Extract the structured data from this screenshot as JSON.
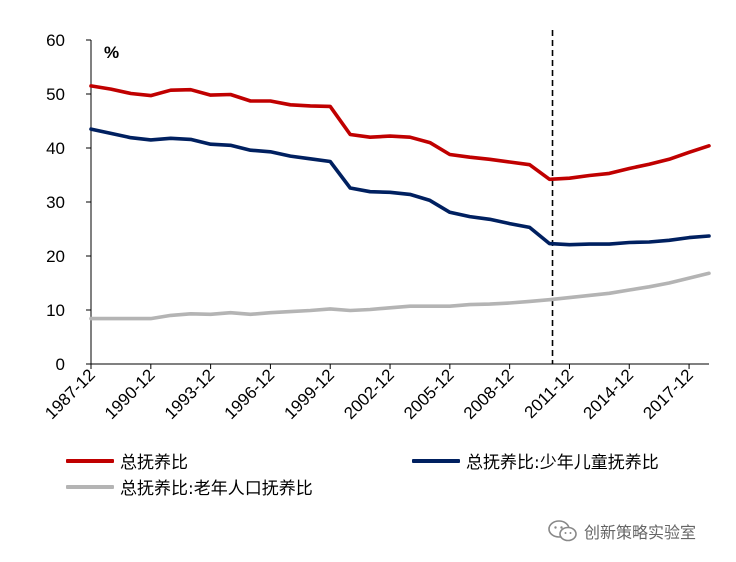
{
  "chart_data": {
    "type": "line",
    "unit_label": "%",
    "ylim": [
      0,
      60
    ],
    "y_ticks": [
      0,
      10,
      20,
      30,
      40,
      50,
      60
    ],
    "x_start_year": 1987,
    "x_end_year": 2018,
    "x_tick_labels": [
      "1987-12",
      "1990-12",
      "1993-12",
      "1996-12",
      "1999-12",
      "2002-12",
      "2005-12",
      "2008-12",
      "2011-12",
      "2014-12",
      "2017-12"
    ],
    "vline_year": 2010.0,
    "series": [
      {
        "name": "总抚养比",
        "color": "#c00000",
        "points": [
          [
            1987,
            51.5
          ],
          [
            1988,
            50.9
          ],
          [
            1989,
            50.1
          ],
          [
            1990,
            49.7
          ],
          [
            1991,
            50.7
          ],
          [
            1992,
            50.8
          ],
          [
            1993,
            49.8
          ],
          [
            1994,
            49.9
          ],
          [
            1995,
            48.7
          ],
          [
            1996,
            48.7
          ],
          [
            1997,
            48.0
          ],
          [
            1998,
            47.8
          ],
          [
            1999,
            47.7
          ],
          [
            2000,
            42.5
          ],
          [
            2001,
            42.0
          ],
          [
            2002,
            42.2
          ],
          [
            2003,
            42.0
          ],
          [
            2004,
            41.0
          ],
          [
            2005,
            38.8
          ],
          [
            2006,
            38.3
          ],
          [
            2007,
            37.9
          ],
          [
            2008,
            37.4
          ],
          [
            2009,
            36.9
          ],
          [
            2010,
            34.2
          ],
          [
            2011,
            34.4
          ],
          [
            2012,
            34.9
          ],
          [
            2013,
            35.3
          ],
          [
            2014,
            36.2
          ],
          [
            2015,
            37.0
          ],
          [
            2016,
            37.9
          ],
          [
            2017,
            39.2
          ],
          [
            2018,
            40.4
          ]
        ]
      },
      {
        "name": "总抚养比:少年儿童抚养比",
        "color": "#002060",
        "points": [
          [
            1987,
            43.5
          ],
          [
            1988,
            42.7
          ],
          [
            1989,
            41.9
          ],
          [
            1990,
            41.5
          ],
          [
            1991,
            41.8
          ],
          [
            1992,
            41.6
          ],
          [
            1993,
            40.7
          ],
          [
            1994,
            40.5
          ],
          [
            1995,
            39.6
          ],
          [
            1996,
            39.3
          ],
          [
            1997,
            38.5
          ],
          [
            1998,
            38.0
          ],
          [
            1999,
            37.5
          ],
          [
            2000,
            32.6
          ],
          [
            2001,
            31.9
          ],
          [
            2002,
            31.8
          ],
          [
            2003,
            31.4
          ],
          [
            2004,
            30.3
          ],
          [
            2005,
            28.1
          ],
          [
            2006,
            27.3
          ],
          [
            2007,
            26.8
          ],
          [
            2008,
            26.0
          ],
          [
            2009,
            25.3
          ],
          [
            2010,
            22.3
          ],
          [
            2011,
            22.1
          ],
          [
            2012,
            22.2
          ],
          [
            2013,
            22.2
          ],
          [
            2014,
            22.5
          ],
          [
            2015,
            22.6
          ],
          [
            2016,
            22.9
          ],
          [
            2017,
            23.4
          ],
          [
            2018,
            23.7
          ]
        ]
      },
      {
        "name": "总抚养比:老年人口抚养比",
        "color": "#b4b4b4",
        "points": [
          [
            1987,
            8.4
          ],
          [
            1988,
            8.4
          ],
          [
            1989,
            8.4
          ],
          [
            1990,
            8.4
          ],
          [
            1991,
            9.0
          ],
          [
            1992,
            9.3
          ],
          [
            1993,
            9.2
          ],
          [
            1994,
            9.5
          ],
          [
            1995,
            9.2
          ],
          [
            1996,
            9.5
          ],
          [
            1997,
            9.7
          ],
          [
            1998,
            9.9
          ],
          [
            1999,
            10.2
          ],
          [
            2000,
            9.9
          ],
          [
            2001,
            10.1
          ],
          [
            2002,
            10.4
          ],
          [
            2003,
            10.7
          ],
          [
            2004,
            10.7
          ],
          [
            2005,
            10.7
          ],
          [
            2006,
            11.0
          ],
          [
            2007,
            11.1
          ],
          [
            2008,
            11.3
          ],
          [
            2009,
            11.6
          ],
          [
            2010,
            11.9
          ],
          [
            2011,
            12.3
          ],
          [
            2012,
            12.7
          ],
          [
            2013,
            13.1
          ],
          [
            2014,
            13.7
          ],
          [
            2015,
            14.3
          ],
          [
            2016,
            15.0
          ],
          [
            2017,
            15.9
          ],
          [
            2018,
            16.8
          ]
        ]
      }
    ],
    "legend": [
      {
        "label": "总抚养比",
        "color": "#c00000"
      },
      {
        "label": "总抚养比:少年儿童抚养比",
        "color": "#002060"
      },
      {
        "label": "总抚养比:老年人口抚养比",
        "color": "#b4b4b4"
      }
    ]
  },
  "watermark": {
    "text": "创新策略实验室",
    "icon": "wechat-icon"
  }
}
